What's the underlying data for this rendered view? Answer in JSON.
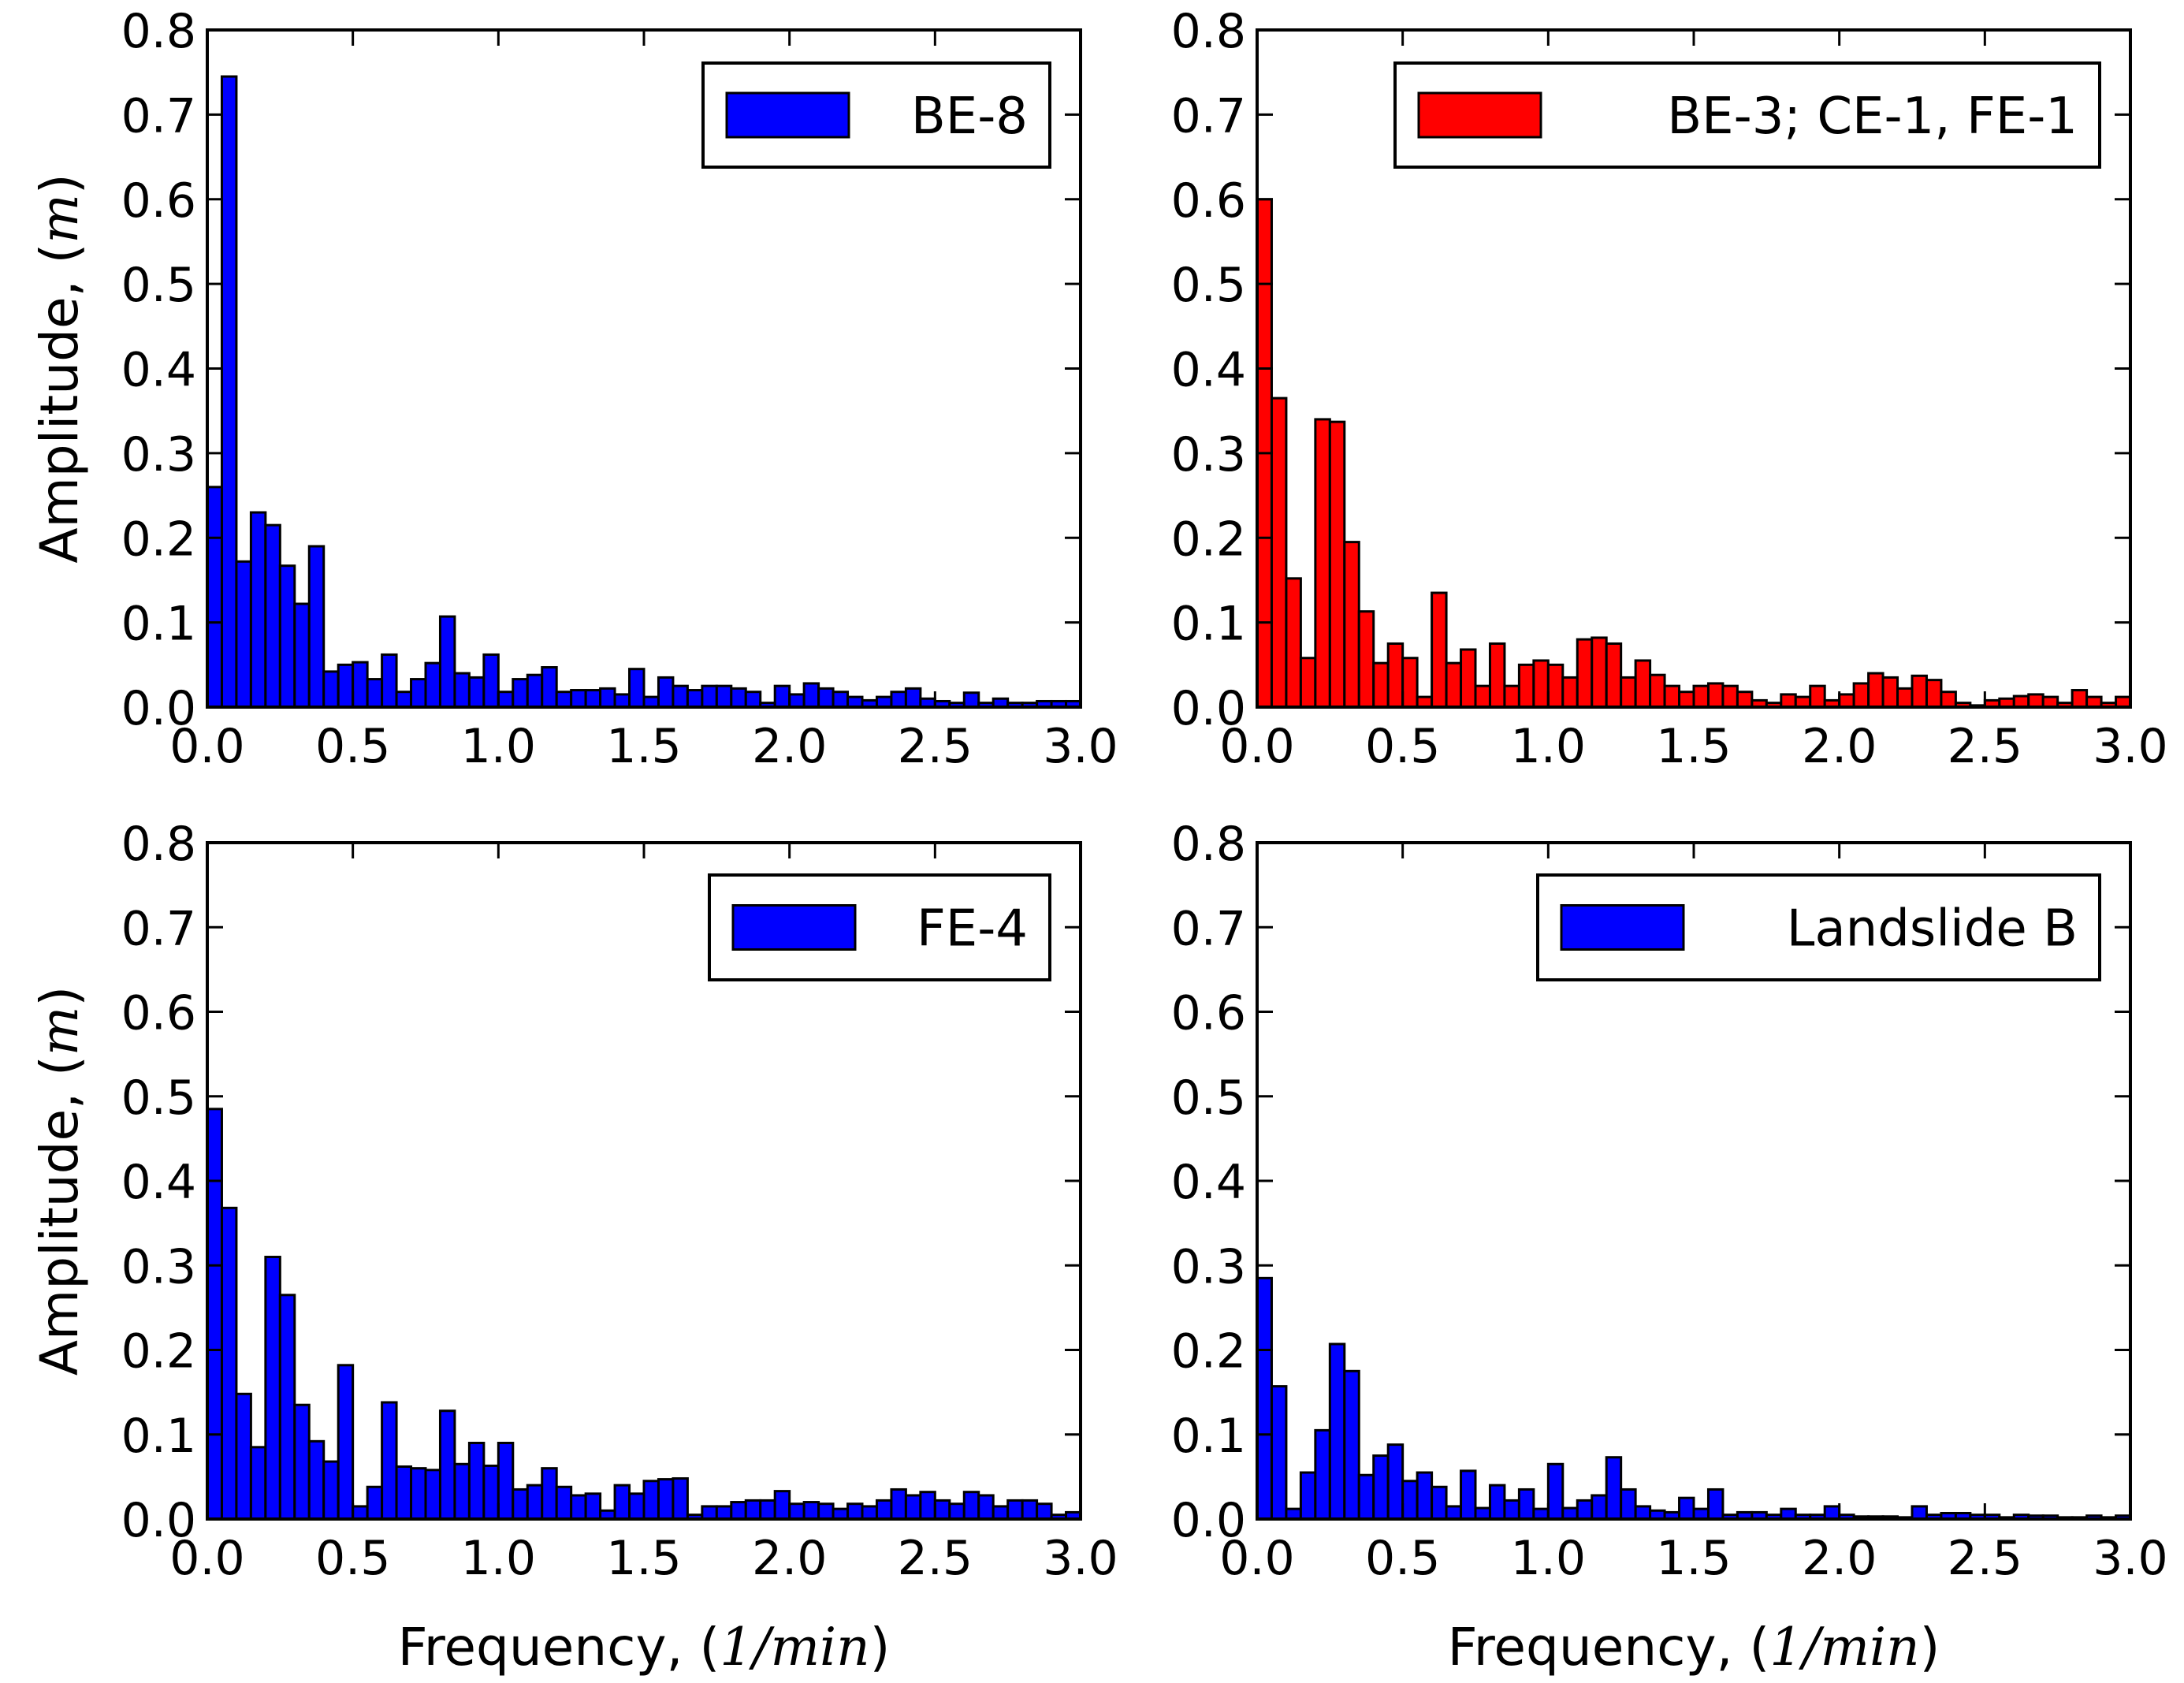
{
  "figure": {
    "ylabel": "Amplitude, (m)",
    "ylabel_text": "Amplitude, (",
    "ylabel_var": "m",
    "ylabel_close": ")",
    "xlabel_text": "Frequency, (",
    "xlabel_var": "1/min",
    "xlabel_close": ")"
  },
  "chart_data": [
    {
      "type": "bar",
      "legend": "BE-8",
      "color": "#0000ff",
      "show_ylabel": true,
      "show_xlabel": false,
      "xlim": [
        0.0,
        3.0
      ],
      "ylim": [
        0.0,
        0.8
      ],
      "xticks": [
        "0.0",
        "0.5",
        "1.0",
        "1.5",
        "2.0",
        "2.5",
        "3.0"
      ],
      "yticks": [
        "0.0",
        "0.1",
        "0.2",
        "0.3",
        "0.4",
        "0.5",
        "0.6",
        "0.7",
        "0.8"
      ],
      "bin_width": 0.05,
      "values": [
        0.26,
        0.745,
        0.172,
        0.23,
        0.215,
        0.167,
        0.122,
        0.19,
        0.042,
        0.05,
        0.053,
        0.033,
        0.062,
        0.018,
        0.033,
        0.052,
        0.107,
        0.04,
        0.035,
        0.062,
        0.018,
        0.033,
        0.038,
        0.047,
        0.018,
        0.02,
        0.02,
        0.022,
        0.015,
        0.045,
        0.012,
        0.035,
        0.025,
        0.02,
        0.025,
        0.025,
        0.022,
        0.018,
        0.005,
        0.025,
        0.015,
        0.028,
        0.022,
        0.018,
        0.012,
        0.008,
        0.012,
        0.018,
        0.022,
        0.01,
        0.007,
        0.005,
        0.017,
        0.005,
        0.01,
        0.005,
        0.005,
        0.007,
        0.007,
        0.007
      ]
    },
    {
      "type": "bar",
      "legend": "BE-3; CE-1, FE-1",
      "color": "#ff0000",
      "show_ylabel": false,
      "show_xlabel": false,
      "xlim": [
        0.0,
        3.0
      ],
      "ylim": [
        0.0,
        0.8
      ],
      "xticks": [
        "0.0",
        "0.5",
        "1.0",
        "1.5",
        "2.0",
        "2.5",
        "3.0"
      ],
      "yticks": [
        "0.0",
        "0.1",
        "0.2",
        "0.3",
        "0.4",
        "0.5",
        "0.6",
        "0.7",
        "0.8"
      ],
      "bin_width": 0.05,
      "values": [
        0.6,
        0.365,
        0.152,
        0.058,
        0.34,
        0.337,
        0.195,
        0.113,
        0.052,
        0.075,
        0.058,
        0.012,
        0.135,
        0.052,
        0.068,
        0.025,
        0.075,
        0.025,
        0.05,
        0.055,
        0.05,
        0.035,
        0.08,
        0.082,
        0.075,
        0.035,
        0.055,
        0.038,
        0.025,
        0.018,
        0.025,
        0.028,
        0.025,
        0.018,
        0.008,
        0.005,
        0.015,
        0.012,
        0.025,
        0.008,
        0.015,
        0.028,
        0.04,
        0.035,
        0.022,
        0.037,
        0.032,
        0.018,
        0.005,
        0.002,
        0.008,
        0.01,
        0.013,
        0.015,
        0.012,
        0.005,
        0.02,
        0.012,
        0.005,
        0.012,
        0.013
      ]
    },
    {
      "type": "bar",
      "legend": "FE-4",
      "color": "#0000ff",
      "show_ylabel": true,
      "show_xlabel": true,
      "xlim": [
        0.0,
        3.0
      ],
      "ylim": [
        0.0,
        0.8
      ],
      "xticks": [
        "0.0",
        "0.5",
        "1.0",
        "1.5",
        "2.0",
        "2.5",
        "3.0"
      ],
      "yticks": [
        "0.0",
        "0.1",
        "0.2",
        "0.3",
        "0.4",
        "0.5",
        "0.6",
        "0.7",
        "0.8"
      ],
      "bin_width": 0.05,
      "values": [
        0.485,
        0.368,
        0.148,
        0.085,
        0.31,
        0.265,
        0.135,
        0.092,
        0.068,
        0.182,
        0.015,
        0.038,
        0.138,
        0.062,
        0.06,
        0.058,
        0.128,
        0.065,
        0.09,
        0.063,
        0.09,
        0.035,
        0.04,
        0.06,
        0.038,
        0.028,
        0.03,
        0.01,
        0.04,
        0.03,
        0.045,
        0.047,
        0.048,
        0.005,
        0.015,
        0.015,
        0.02,
        0.022,
        0.022,
        0.033,
        0.018,
        0.02,
        0.018,
        0.012,
        0.018,
        0.015,
        0.022,
        0.035,
        0.028,
        0.032,
        0.022,
        0.018,
        0.032,
        0.028,
        0.015,
        0.022,
        0.022,
        0.018,
        0.005,
        0.008
      ]
    },
    {
      "type": "bar",
      "legend": "Landslide B",
      "color": "#0000ff",
      "show_ylabel": false,
      "show_xlabel": true,
      "xlim": [
        0.0,
        3.0
      ],
      "ylim": [
        0.0,
        0.8
      ],
      "xticks": [
        "0.0",
        "0.5",
        "1.0",
        "1.5",
        "2.0",
        "2.5",
        "3.0"
      ],
      "yticks": [
        "0.0",
        "0.1",
        "0.2",
        "0.3",
        "0.4",
        "0.5",
        "0.6",
        "0.7",
        "0.8"
      ],
      "bin_width": 0.05,
      "values": [
        0.285,
        0.157,
        0.012,
        0.055,
        0.105,
        0.207,
        0.175,
        0.052,
        0.075,
        0.088,
        0.045,
        0.055,
        0.038,
        0.015,
        0.057,
        0.013,
        0.04,
        0.022,
        0.035,
        0.012,
        0.065,
        0.013,
        0.022,
        0.028,
        0.073,
        0.035,
        0.015,
        0.01,
        0.008,
        0.025,
        0.012,
        0.035,
        0.005,
        0.008,
        0.008,
        0.005,
        0.012,
        0.005,
        0.005,
        0.015,
        0.005,
        0.003,
        0.003,
        0.003,
        0.002,
        0.015,
        0.005,
        0.007,
        0.007,
        0.005,
        0.005,
        0.002,
        0.005,
        0.004,
        0.004,
        0.002,
        0.002,
        0.004,
        0.002,
        0.004
      ]
    }
  ]
}
